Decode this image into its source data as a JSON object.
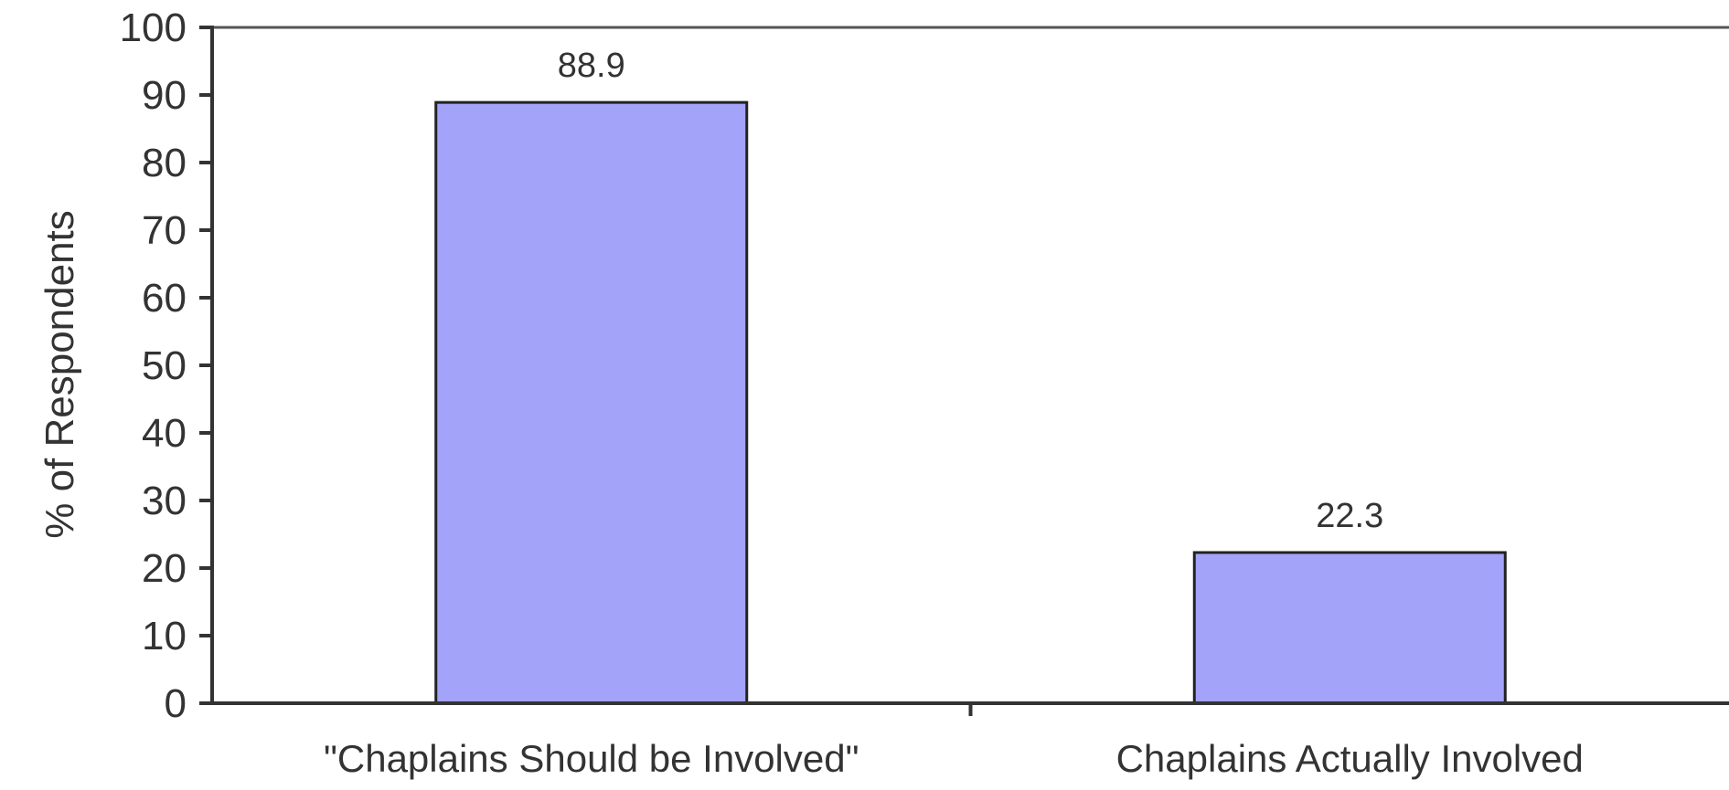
{
  "chart_data": {
    "type": "bar",
    "title": "",
    "xlabel": "",
    "ylabel": "% of Respondents",
    "categories": [
      "\"Chaplains Should be Involved\"",
      "Chaplains Actually Involved"
    ],
    "values": [
      88.9,
      22.3
    ],
    "data_labels": [
      "88.9",
      "22.3"
    ],
    "ylim": [
      0,
      100
    ],
    "yticks": [
      0,
      10,
      20,
      30,
      40,
      50,
      60,
      70,
      80,
      90,
      100
    ],
    "ytick_labels": [
      "0",
      "10",
      "20",
      "30",
      "40",
      "50",
      "60",
      "70",
      "80",
      "90",
      "100"
    ],
    "bar_color": "#a3a3fa",
    "bar_edge_color": "#222222",
    "grid": false,
    "legend": "none"
  }
}
